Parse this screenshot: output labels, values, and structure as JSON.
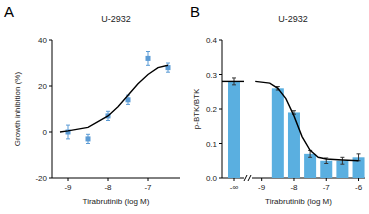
{
  "chart_data": [
    {
      "panel": "A",
      "type": "scatter",
      "title": "U-2932",
      "x_label": "Tirabrutinib (log M)",
      "y_label": "Growth inhibition (%)",
      "xlim": [
        -9.4,
        -6.2
      ],
      "xticks": [
        -9,
        -8,
        -7
      ],
      "ylim": [
        -20,
        40
      ],
      "yticks": [
        -20,
        0,
        20,
        40
      ],
      "series": [
        {
          "type": "scatter",
          "marker": "square",
          "color": "#5b9bd5",
          "x": [
            -9,
            -8.5,
            -8,
            -7.5,
            -7,
            -6.5
          ],
          "values": [
            0,
            -3,
            7,
            14,
            32,
            28
          ],
          "errors": [
            3,
            2,
            2,
            2,
            3,
            2
          ]
        },
        {
          "type": "line",
          "color": "#000000",
          "x": [
            -9.2,
            -9,
            -8.5,
            -8,
            -7.75,
            -7.5,
            -7.25,
            -7,
            -6.75,
            -6.5
          ],
          "values": [
            0,
            0.5,
            2,
            7,
            11,
            16,
            21,
            25,
            28,
            29
          ]
        }
      ]
    },
    {
      "panel": "B",
      "type": "bar",
      "title": "U-2932",
      "x_label": "Tirabrutinib (log M)",
      "y_label": "p-BTK/BTK",
      "xlim": [
        -9.3,
        -5.8
      ],
      "xticks": [
        -9,
        -8,
        -7,
        -6
      ],
      "ylim": [
        0,
        0.4
      ],
      "yticks": [
        {
          "value": 0,
          "label": "0.0"
        },
        0.1,
        0.2,
        0.3,
        0.4
      ],
      "control": {
        "label": "-∞",
        "value": 0.28,
        "error": 0.01
      },
      "series": [
        {
          "type": "bar",
          "color": "#5aafe0",
          "x": [
            -8.5,
            -8,
            -7.5,
            -7,
            -6.5,
            -6
          ],
          "values": [
            0.26,
            0.19,
            0.07,
            0.05,
            0.05,
            0.06
          ],
          "errors": [
            0.005,
            0.005,
            0.01,
            0.008,
            0.01,
            0.01
          ]
        },
        {
          "type": "line",
          "color": "#000000",
          "x": [
            -9.2,
            -8.75,
            -8.5,
            -8.25,
            -8,
            -7.75,
            -7.5,
            -7.25,
            -7,
            -6.5,
            -6
          ],
          "values": [
            0.28,
            0.275,
            0.26,
            0.23,
            0.18,
            0.12,
            0.08,
            0.06,
            0.055,
            0.052,
            0.05
          ]
        }
      ]
    }
  ]
}
